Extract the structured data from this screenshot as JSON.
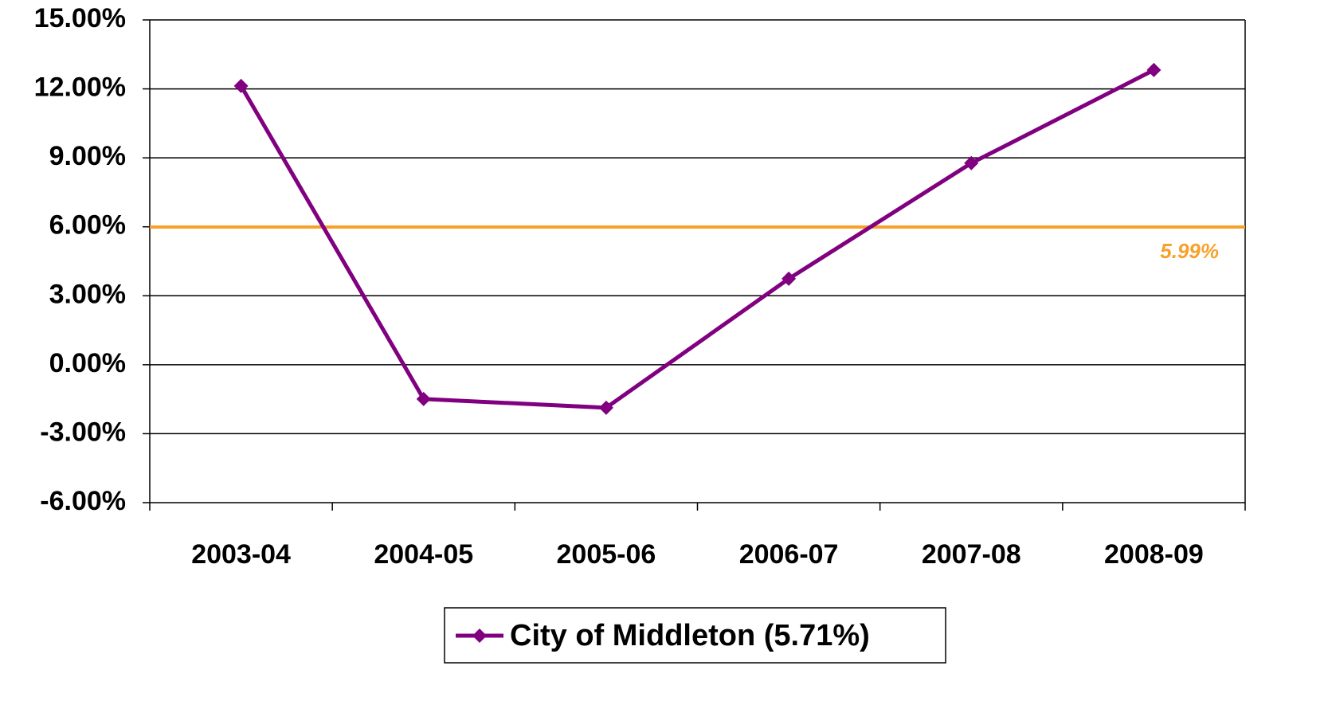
{
  "chart_data": {
    "type": "line",
    "categories": [
      "2003-04",
      "2004-05",
      "2005-06",
      "2006-07",
      "2007-08",
      "2008-09"
    ],
    "series": [
      {
        "name": "City of Middleton (5.71%)",
        "color": "#800080",
        "values": [
          12.13,
          -1.49,
          -1.87,
          3.74,
          8.77,
          12.82
        ]
      }
    ],
    "reference_line": {
      "value": 5.99,
      "label": "5.99%",
      "color": "#f7a12b"
    },
    "ylim": [
      -6,
      15
    ],
    "yticks": [
      {
        "value": -6,
        "label": "-6.00%"
      },
      {
        "value": -3,
        "label": "-3.00%"
      },
      {
        "value": 0,
        "label": "0.00%"
      },
      {
        "value": 3,
        "label": "3.00%"
      },
      {
        "value": 6,
        "label": "6.00%"
      },
      {
        "value": 9,
        "label": "9.00%"
      },
      {
        "value": 12,
        "label": "12.00%"
      },
      {
        "value": 15,
        "label": "15.00%"
      }
    ],
    "grid": true,
    "legend": "bottom"
  }
}
